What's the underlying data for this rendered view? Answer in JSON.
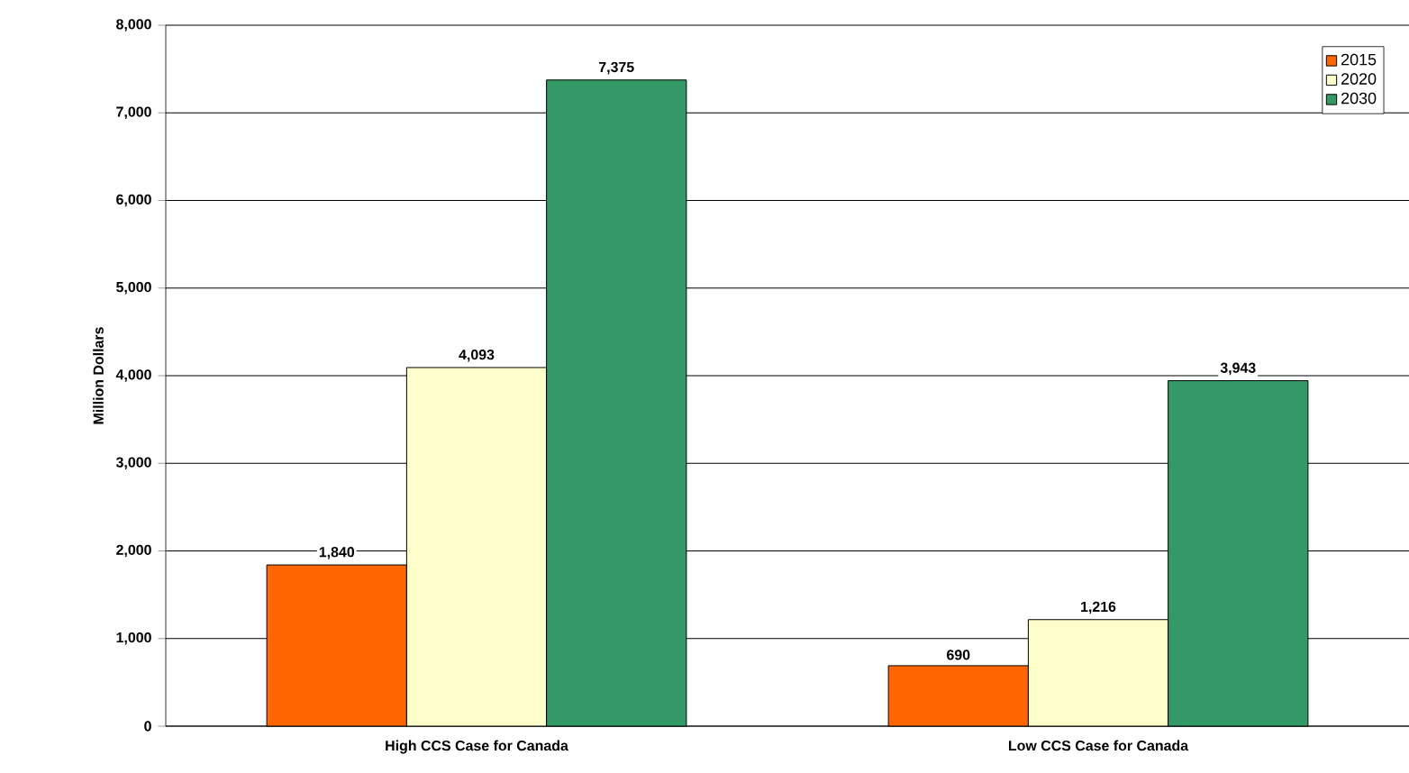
{
  "chart_data": {
    "type": "bar",
    "ylabel": "Million Dollars",
    "categories": [
      "High CCS Case for Canada",
      "Low CCS Case for Canada"
    ],
    "series": [
      {
        "name": "2015",
        "color": "#ff6600",
        "values": [
          1840,
          690
        ],
        "value_labels": [
          "1,840",
          "690"
        ]
      },
      {
        "name": "2020",
        "color": "#ffffcc",
        "values": [
          4093,
          1216
        ],
        "value_labels": [
          "4,093",
          "1,216"
        ]
      },
      {
        "name": "2030",
        "color": "#339966",
        "values": [
          7375,
          3943
        ],
        "value_labels": [
          "7,375",
          "3,943"
        ]
      }
    ],
    "ylim": [
      0,
      8000
    ],
    "yticks": [
      {
        "value": 0,
        "label": "0"
      },
      {
        "value": 1000,
        "label": "1,000"
      },
      {
        "value": 2000,
        "label": "2,000"
      },
      {
        "value": 3000,
        "label": "3,000"
      },
      {
        "value": 4000,
        "label": "4,000"
      },
      {
        "value": 5000,
        "label": "5,000"
      },
      {
        "value": 6000,
        "label": "6,000"
      },
      {
        "value": 7000,
        "label": "7,000"
      },
      {
        "value": 8000,
        "label": "8,000"
      }
    ],
    "grid": "y",
    "legend": "top right"
  }
}
